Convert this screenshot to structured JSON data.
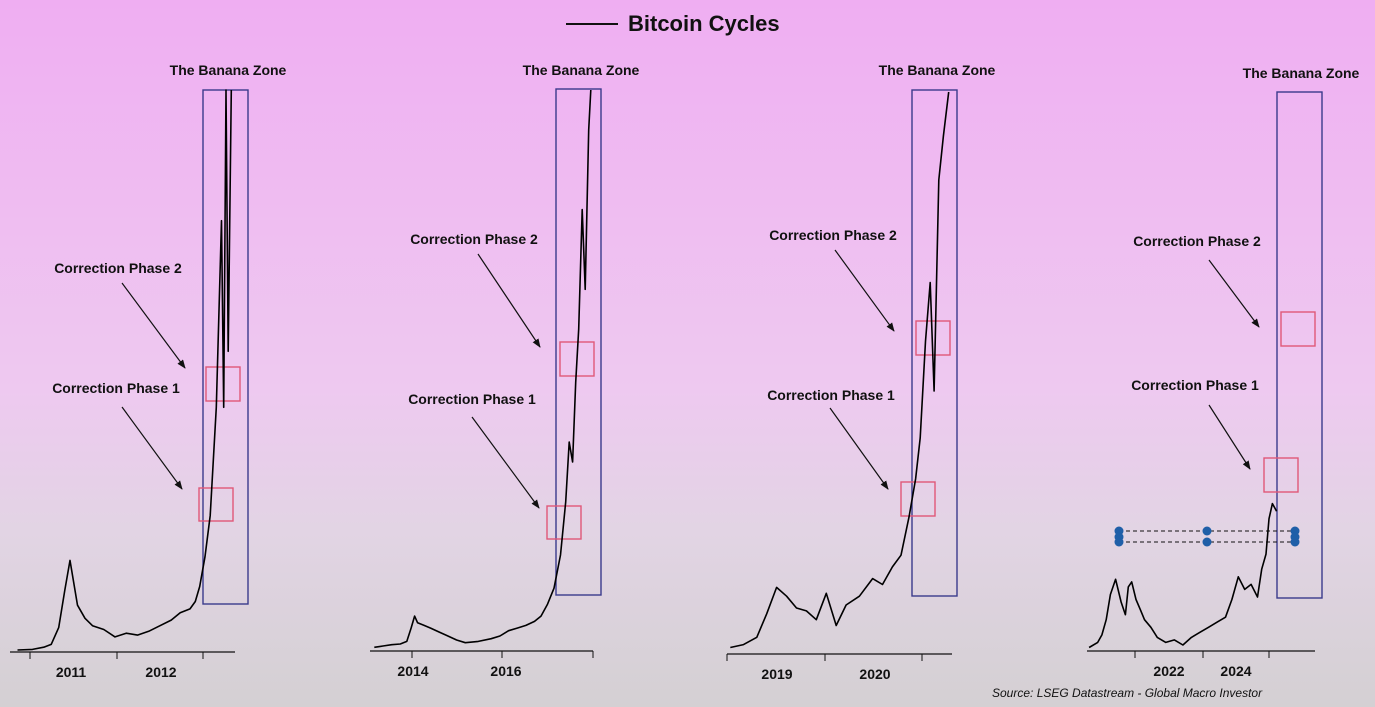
{
  "title": "Bitcoin Cycles",
  "source": "Source: LSEG Datastream - Global Macro Investor",
  "colors": {
    "price": "#000000",
    "zone_box": "#3a3a8c",
    "correction_box": "#e05878",
    "marker": "#1f5fa8"
  },
  "chart_data": [
    {
      "type": "line",
      "series_name": "Bitcoin Cycles",
      "x_tick_labels": [
        "2011",
        "2012"
      ],
      "x": [
        2010.55,
        2010.75,
        2010.9,
        2011.0,
        2011.1,
        2011.18,
        2011.25,
        2011.35,
        2011.45,
        2011.55,
        2011.7,
        2011.85,
        2012.0,
        2012.15,
        2012.3,
        2012.45,
        2012.6,
        2012.72,
        2012.85,
        2012.92,
        2012.98,
        2013.05,
        2013.12,
        2013.2,
        2013.27,
        2013.3,
        2013.33,
        2013.36,
        2013.4
      ],
      "y": [
        0,
        0.3,
        1.5,
        3,
        12,
        32,
        48,
        24,
        17,
        13,
        11,
        7,
        9,
        8,
        10,
        13,
        16,
        20,
        22,
        26,
        34,
        50,
        72,
        130,
        230,
        130,
        300,
        160,
        300
      ],
      "ylim": [
        0,
        300
      ],
      "annotations": [
        {
          "text": "The Banana Zone"
        },
        {
          "text": "Correction Phase 2"
        },
        {
          "text": "Correction Phase 1"
        }
      ],
      "banana_zone_x": [
        2012.85,
        2013.4
      ],
      "correction_phase_1_x": [
        2012.8,
        2013.2
      ],
      "correction_phase_2_x": [
        2012.87,
        2013.27
      ]
    },
    {
      "type": "line",
      "series_name": "Bitcoin Cycles",
      "x_tick_labels": [
        "2014",
        "2016"
      ],
      "x": [
        2013.0,
        2013.2,
        2013.4,
        2013.6,
        2013.75,
        2013.85,
        2013.93,
        2014.0,
        2014.15,
        2014.3,
        2014.5,
        2014.7,
        2014.9,
        2015.1,
        2015.4,
        2015.7,
        2015.9,
        2016.1,
        2016.3,
        2016.5,
        2016.7,
        2016.85,
        2017.0,
        2017.15,
        2017.3,
        2017.42,
        2017.5,
        2017.58,
        2017.65,
        2017.72,
        2017.8,
        2017.87,
        2017.95,
        2018.0
      ],
      "y": [
        0.5,
        1.5,
        2.5,
        3,
        5,
        15,
        24,
        19,
        17,
        15,
        12,
        9,
        6,
        4,
        5,
        7,
        9,
        13,
        15,
        17,
        20,
        24,
        33,
        45,
        70,
        110,
        155,
        140,
        200,
        240,
        330,
        270,
        390,
        420
      ],
      "ylim": [
        0,
        420
      ],
      "annotations": [
        {
          "text": "The Banana Zone"
        },
        {
          "text": "Correction Phase 2"
        },
        {
          "text": "Correction Phase 1"
        }
      ],
      "banana_zone_x": [
        2017.0,
        2018.0
      ],
      "correction_phase_1_x": [
        2016.8,
        2017.25
      ],
      "correction_phase_2_x": [
        2017.05,
        2017.5
      ]
    },
    {
      "type": "line",
      "series_name": "Bitcoin Cycles",
      "x_tick_labels": [
        "2019",
        "2020"
      ],
      "x": [
        2018.0,
        2018.2,
        2018.4,
        2018.55,
        2018.7,
        2018.85,
        2019.0,
        2019.15,
        2019.3,
        2019.45,
        2019.6,
        2019.75,
        2019.95,
        2020.15,
        2020.3,
        2020.45,
        2020.58,
        2020.7,
        2020.8,
        2020.87,
        2020.95,
        2021.02,
        2021.08,
        2021.15,
        2021.22,
        2021.3
      ],
      "y": [
        0.5,
        1.5,
        4,
        12,
        21,
        18,
        14,
        13,
        10,
        19,
        8,
        15,
        18,
        24,
        22,
        28,
        32,
        45,
        58,
        72,
        105,
        125,
        88,
        160,
        175,
        190
      ],
      "ylim": [
        0,
        190
      ],
      "annotations": [
        {
          "text": "The Banana Zone"
        },
        {
          "text": "Correction Phase 2"
        },
        {
          "text": "Correction Phase 1"
        }
      ],
      "banana_zone_x": [
        2020.7,
        2021.3
      ],
      "correction_phase_1_x": [
        2020.68,
        2020.98
      ],
      "correction_phase_2_x": [
        2020.9,
        2021.2
      ]
    },
    {
      "type": "line",
      "series_name": "Bitcoin Cycles",
      "x_tick_labels": [
        "2022",
        "2024"
      ],
      "x": [
        2020.7,
        2020.9,
        2021.0,
        2021.1,
        2021.2,
        2021.32,
        2021.45,
        2021.55,
        2021.62,
        2021.7,
        2021.8,
        2021.9,
        2022.0,
        2022.15,
        2022.3,
        2022.5,
        2022.7,
        2022.9,
        2023.1,
        2023.3,
        2023.5,
        2023.7,
        2023.9,
        2024.05,
        2024.2,
        2024.35,
        2024.5,
        2024.65,
        2024.75,
        2024.85,
        2024.92,
        2025.0,
        2025.1
      ],
      "y": [
        1,
        3,
        6,
        12,
        22,
        28,
        19,
        14,
        25,
        27,
        20,
        16,
        12,
        9,
        5,
        3,
        4,
        2,
        5,
        7,
        9,
        11,
        13,
        20,
        29,
        24,
        26,
        21,
        32,
        38,
        52,
        58,
        55
      ],
      "ylim": [
        0,
        210
      ],
      "annotations": [
        {
          "text": "The Banana Zone"
        },
        {
          "text": "Correction Phase 2"
        },
        {
          "text": "Correction Phase 1"
        }
      ],
      "banana_zone_x": [
        2024.95,
        2025.95
      ],
      "correction_phase_1_x": [
        2024.8,
        2025.1
      ],
      "correction_phase_2_x": [
        2025.1,
        2025.4
      ],
      "reference_levels": [
        29,
        26
      ]
    }
  ]
}
